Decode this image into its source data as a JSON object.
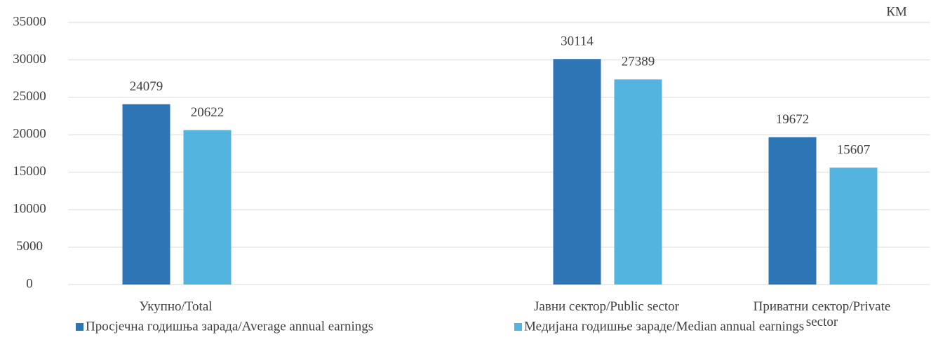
{
  "chart_data": {
    "type": "bar",
    "unit_label": "КМ",
    "categories": [
      "Укупно/Total",
      null,
      "Јавни сектор/Public sector",
      "Приватни сектор/Private sector"
    ],
    "series": [
      {
        "name": "Просјечна годишња зарада/Average annual earnings",
        "color": "#2e75b6",
        "values": [
          24079,
          null,
          30114,
          19672
        ]
      },
      {
        "name": "Медијана годишње зараде/Median annual earnings",
        "color": "#53b4e0",
        "values": [
          20622,
          null,
          27389,
          15607
        ]
      }
    ],
    "ylim": [
      0,
      35000
    ],
    "yticks": [
      0,
      5000,
      10000,
      15000,
      20000,
      25000,
      30000,
      35000
    ],
    "grid": true
  }
}
